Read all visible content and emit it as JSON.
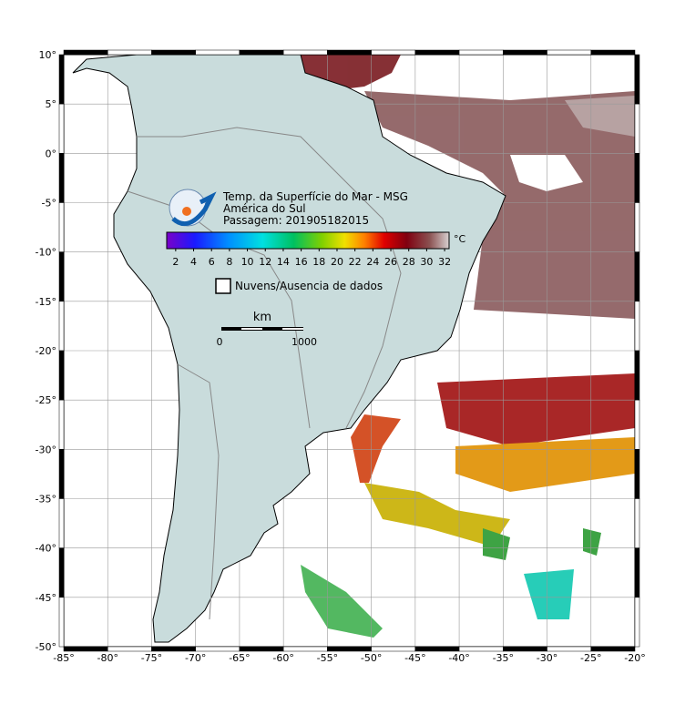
{
  "map": {
    "lon_range": [
      -85,
      -20
    ],
    "lat_range": [
      -50,
      10
    ],
    "lon_ticks": [
      {
        "value": -85,
        "label": "-85°"
      },
      {
        "value": -80,
        "label": "-80°"
      },
      {
        "value": -75,
        "label": "-75°"
      },
      {
        "value": -70,
        "label": "-70°"
      },
      {
        "value": -65,
        "label": "-65°"
      },
      {
        "value": -60,
        "label": "-60°"
      },
      {
        "value": -55,
        "label": "-55°"
      },
      {
        "value": -50,
        "label": "-50°"
      },
      {
        "value": -45,
        "label": "-45°"
      },
      {
        "value": -40,
        "label": "-40°"
      },
      {
        "value": -35,
        "label": "-35°"
      },
      {
        "value": -30,
        "label": "-30°"
      },
      {
        "value": -25,
        "label": "-25°"
      },
      {
        "value": -20,
        "label": "-20°"
      }
    ],
    "lat_ticks": [
      {
        "value": 10,
        "label": "10°"
      },
      {
        "value": 5,
        "label": "5°"
      },
      {
        "value": 0,
        "label": "0°"
      },
      {
        "value": -5,
        "label": "-5°"
      },
      {
        "value": -10,
        "label": "-10°"
      },
      {
        "value": -15,
        "label": "-15°"
      },
      {
        "value": -20,
        "label": "-20°"
      },
      {
        "value": -25,
        "label": "-25°"
      },
      {
        "value": -30,
        "label": "-30°"
      },
      {
        "value": -35,
        "label": "-35°"
      },
      {
        "value": -40,
        "label": "-40°"
      },
      {
        "value": -45,
        "label": "-45°"
      },
      {
        "value": -50,
        "label": "-50°"
      }
    ]
  },
  "legend": {
    "title": "Temp. da Superfície do Mar - MSG",
    "region": "América do Sul",
    "pass": "Passagem: 201905182015",
    "colorbar": {
      "range": [
        1,
        32.5
      ],
      "ticks": [
        2,
        4,
        6,
        8,
        10,
        12,
        14,
        16,
        18,
        20,
        22,
        24,
        26,
        28,
        30,
        32
      ],
      "unit": "°C"
    },
    "no_data": "Nuvens/Ausencia de dados",
    "scale": {
      "unit": "km",
      "start": "0",
      "end": "1000"
    }
  }
}
